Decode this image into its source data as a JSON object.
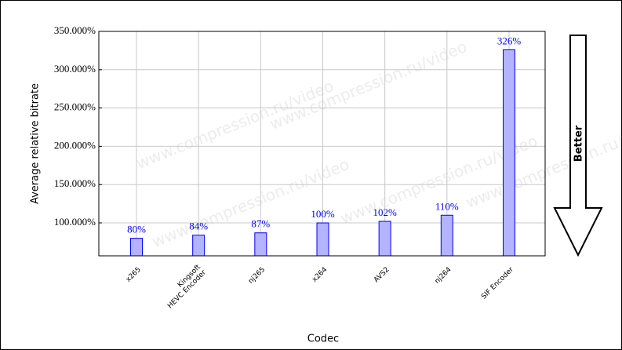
{
  "chart_data": {
    "type": "bar",
    "x_label": "Codec",
    "y_label": "Average relative bitrate",
    "categories": [
      "x265",
      "Kingsoft\nHEVC Encoder",
      "nj265",
      "x264",
      "AVS2",
      "nj264",
      "SIF Encoder"
    ],
    "values": [
      80,
      84,
      87,
      100,
      102,
      110,
      326
    ],
    "value_labels": [
      "80%",
      "84%",
      "87%",
      "100%",
      "102%",
      "110%",
      "326%"
    ],
    "color": "#b3b3ff",
    "edge_color": "#0000ff",
    "ylim": [
      57,
      350
    ],
    "yticks": [
      {
        "value": 100,
        "label": "100.000%"
      },
      {
        "value": 150,
        "label": "150.000%"
      },
      {
        "value": 200,
        "label": "200.000%"
      },
      {
        "value": 250,
        "label": "250.000%"
      },
      {
        "value": 300,
        "label": "300.000%"
      },
      {
        "value": 350,
        "label": "350.000%"
      }
    ],
    "grid": true,
    "annotation": "Better",
    "watermark": "www.compression.ru/video"
  }
}
